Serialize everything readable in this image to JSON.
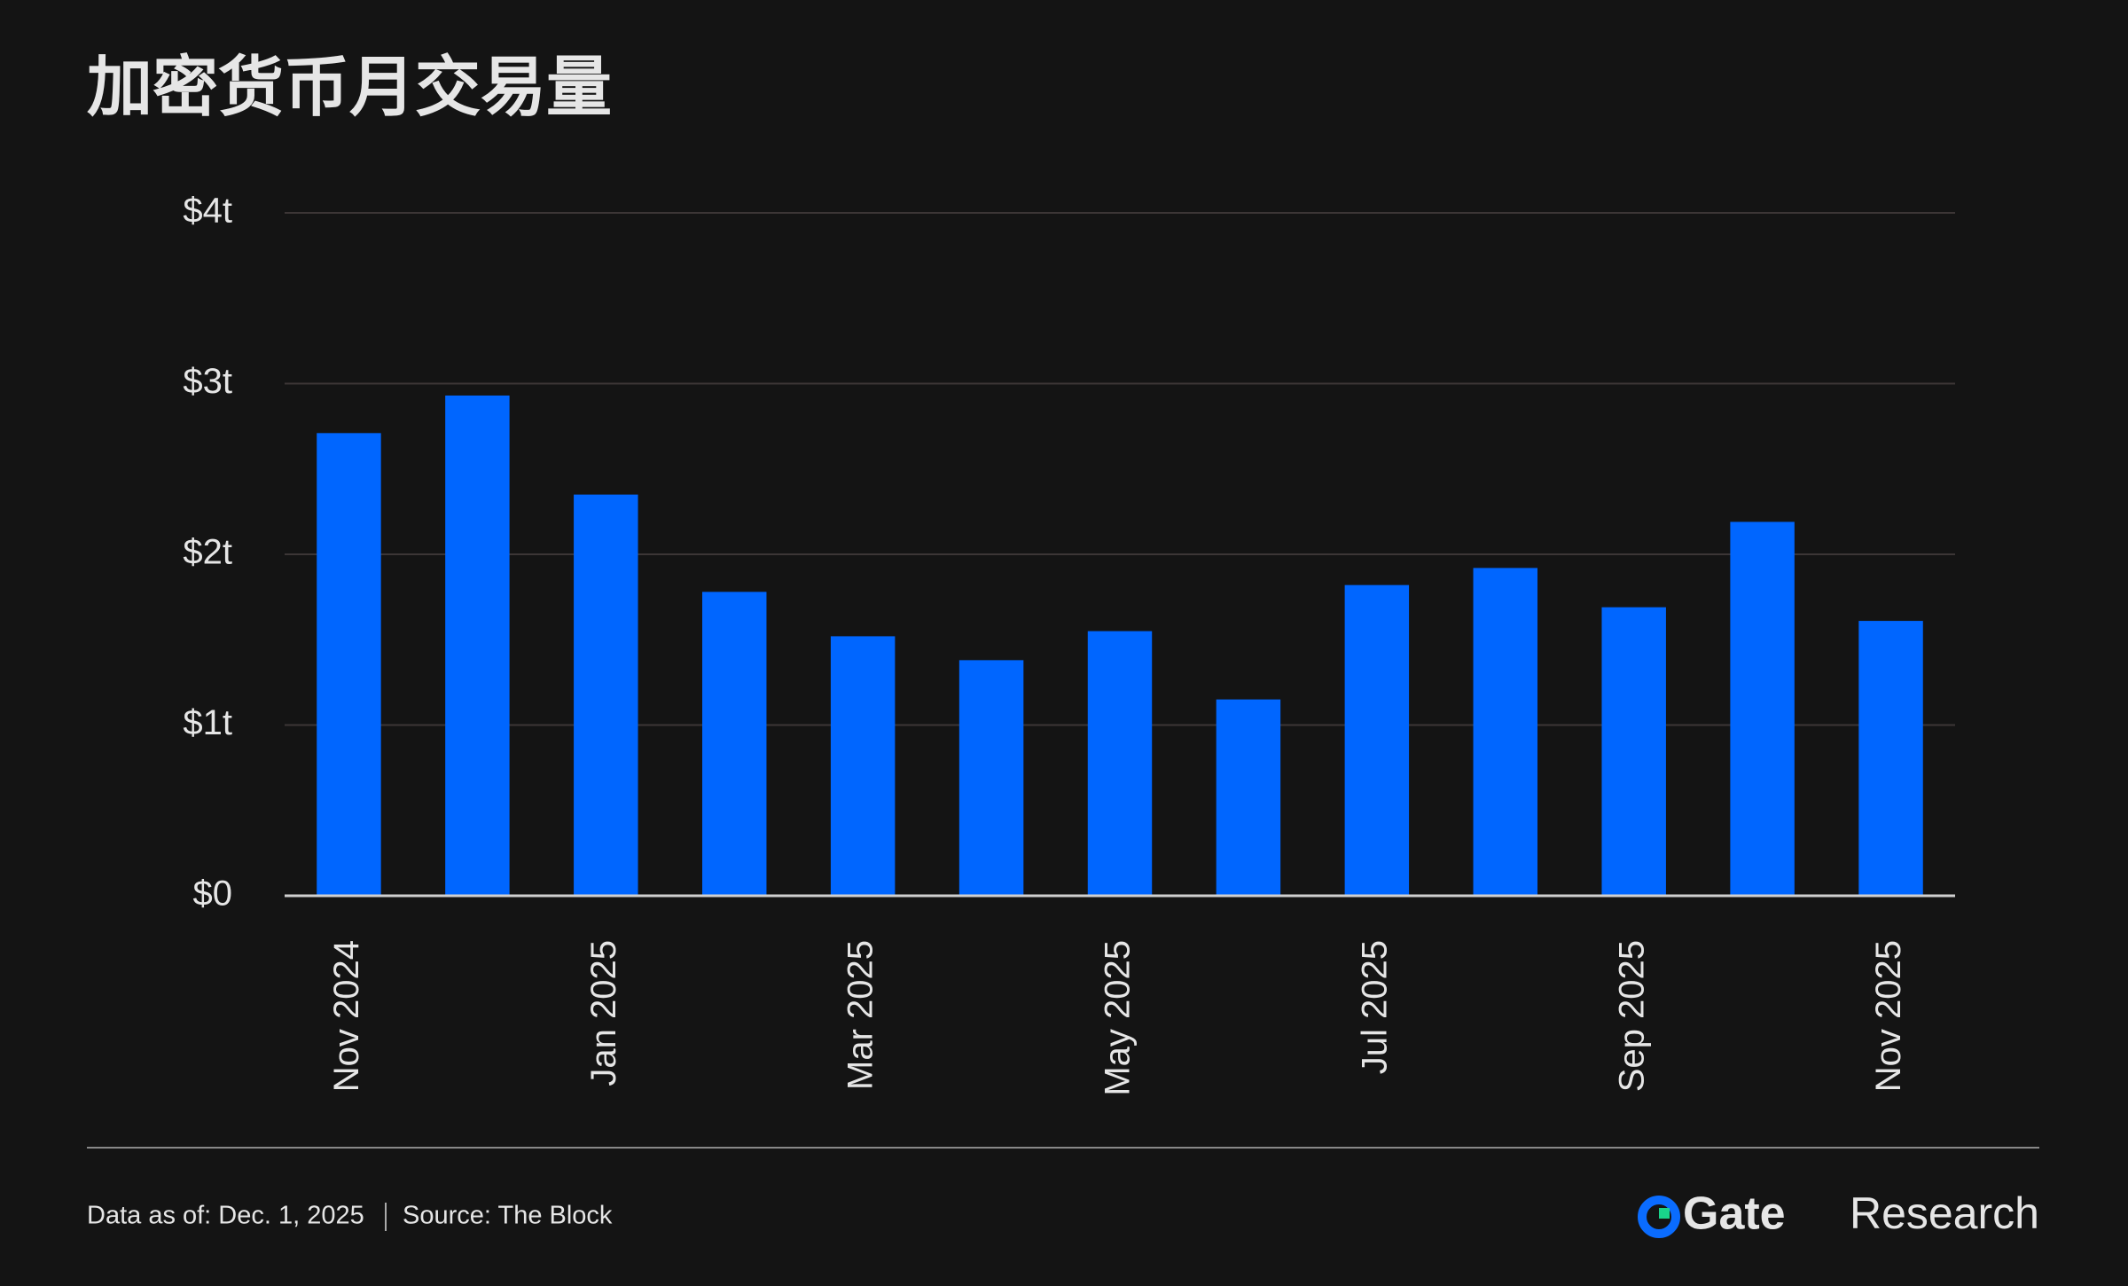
{
  "chart_data": {
    "type": "bar",
    "title": "加密货币月交易量",
    "categories": [
      "Nov 2024",
      null,
      "Jan 2025",
      null,
      "Mar 2025",
      null,
      "May 2025",
      null,
      "Jul 2025",
      null,
      "Sep 2025",
      null,
      "Nov 2025"
    ],
    "values": [
      2.71,
      2.93,
      2.35,
      1.78,
      1.52,
      1.38,
      1.55,
      1.15,
      1.82,
      1.92,
      1.69,
      2.19,
      1.61
    ],
    "color": "#0066ff",
    "ylim": [
      0,
      4
    ],
    "yticks": [
      {
        "value": 0,
        "label": "$0"
      },
      {
        "value": 1,
        "label": "$1t"
      },
      {
        "value": 2,
        "label": "$2t"
      },
      {
        "value": 3,
        "label": "$3t"
      },
      {
        "value": 4,
        "label": "$4t"
      }
    ],
    "grid": true
  },
  "footer": {
    "data_as_of": "Data as of: Dec. 1, 2025",
    "source": "Source:  The Block",
    "brand": "Gate",
    "brand_suffix": "Research"
  }
}
